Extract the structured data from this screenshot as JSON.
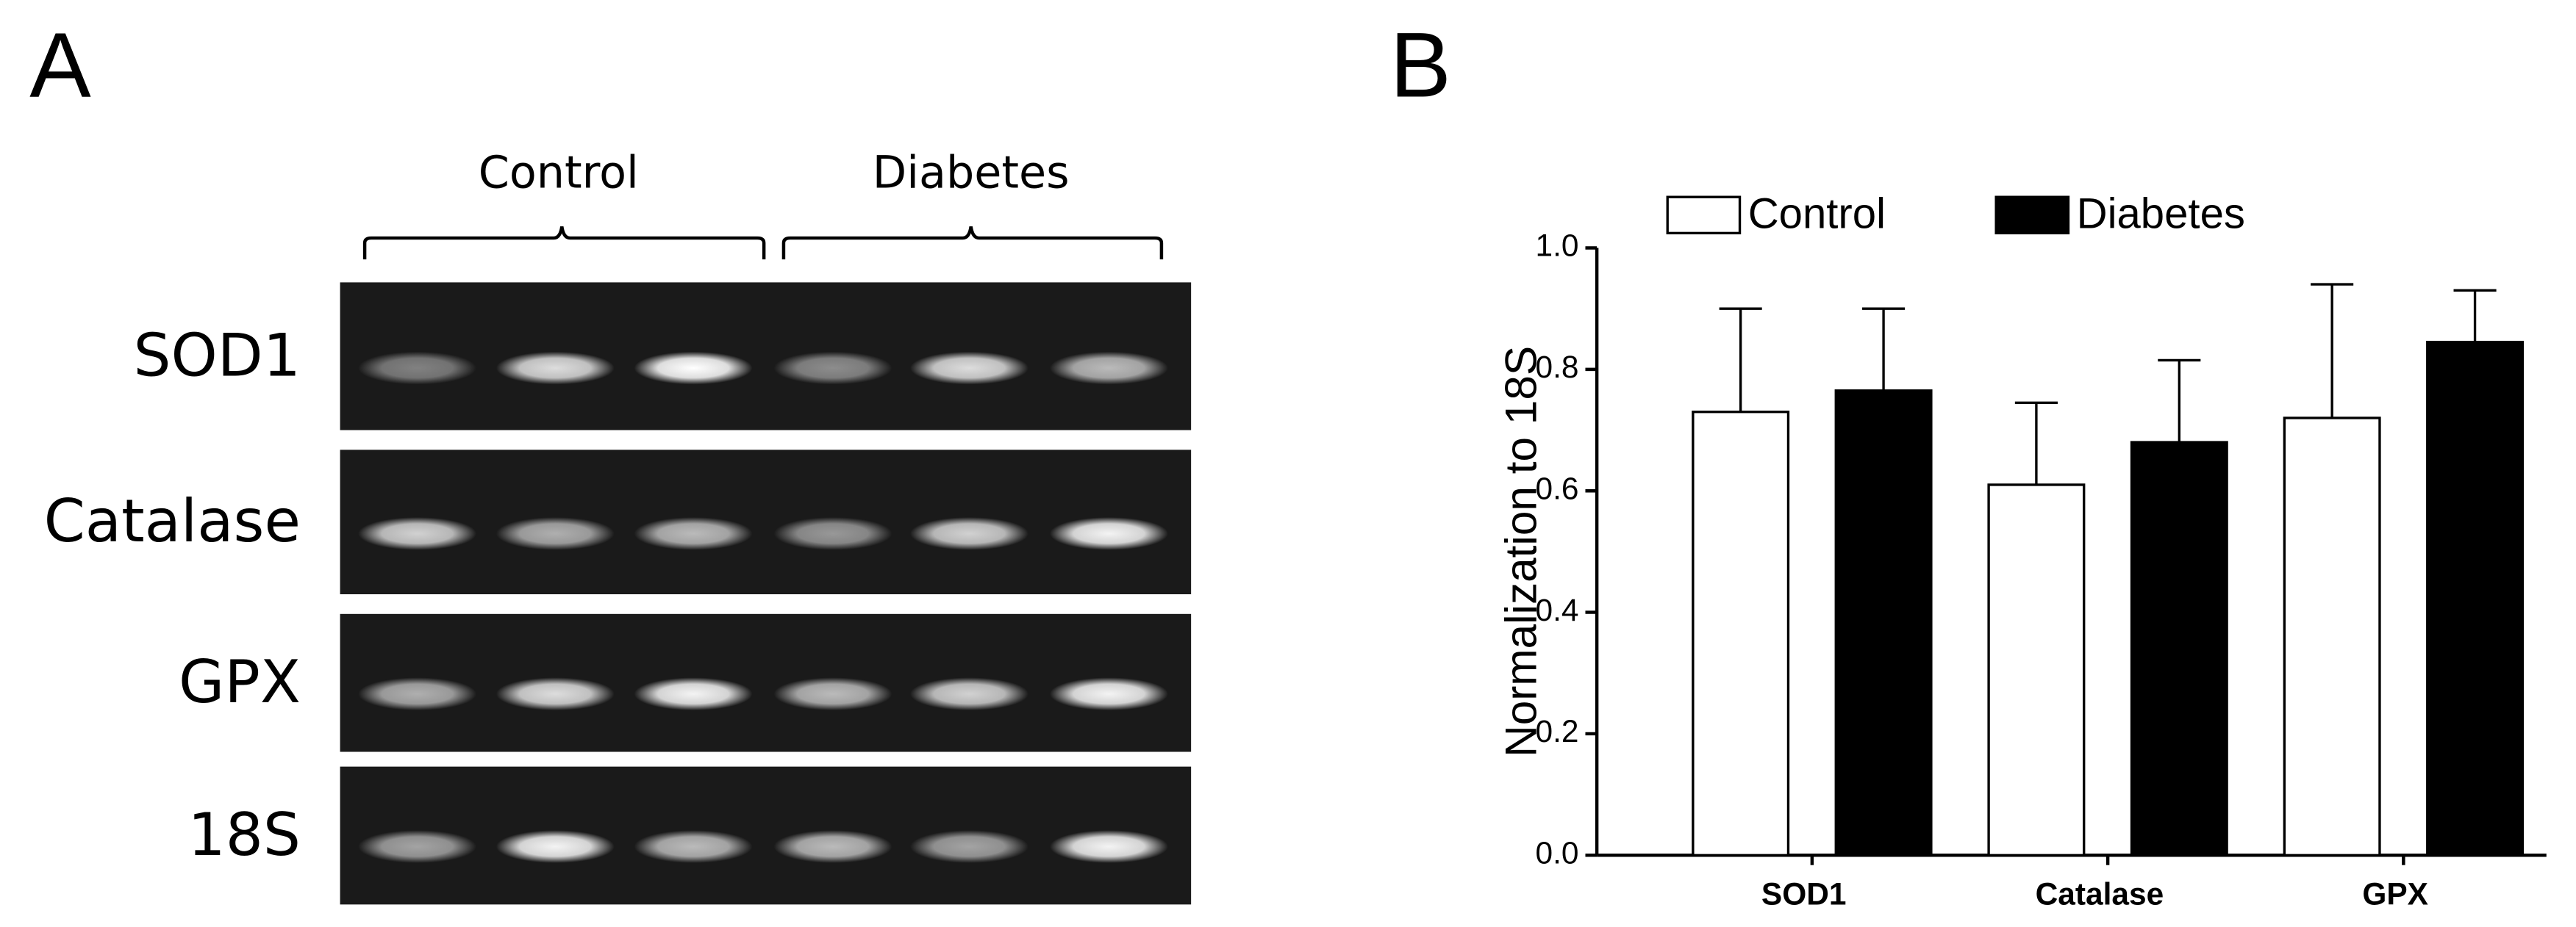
{
  "panel_a": {
    "label": "A",
    "groups": [
      "Control",
      "Diabetes"
    ],
    "rows": [
      "SOD1",
      "Catalase",
      "GPX",
      "18S"
    ]
  },
  "chart_data": {
    "type": "bar",
    "label": "B",
    "ylabel": "Normalization to 18S",
    "categories": [
      "SOD1",
      "Catalase",
      "GPX"
    ],
    "series": [
      {
        "name": "Control",
        "color": "#ffffff",
        "values": [
          0.73,
          0.61,
          0.72
        ],
        "errors": [
          0.17,
          0.135,
          0.22
        ]
      },
      {
        "name": "Diabetes",
        "color": "#000000",
        "values": [
          0.765,
          0.68,
          0.845
        ],
        "errors": [
          0.135,
          0.135,
          0.085
        ]
      }
    ],
    "ylim": [
      0,
      1
    ],
    "yticks": [
      {
        "value": 0,
        "label": "0.0"
      },
      0.2,
      0.4,
      0.6,
      0.8,
      {
        "value": 1,
        "label": "1.0"
      }
    ]
  }
}
